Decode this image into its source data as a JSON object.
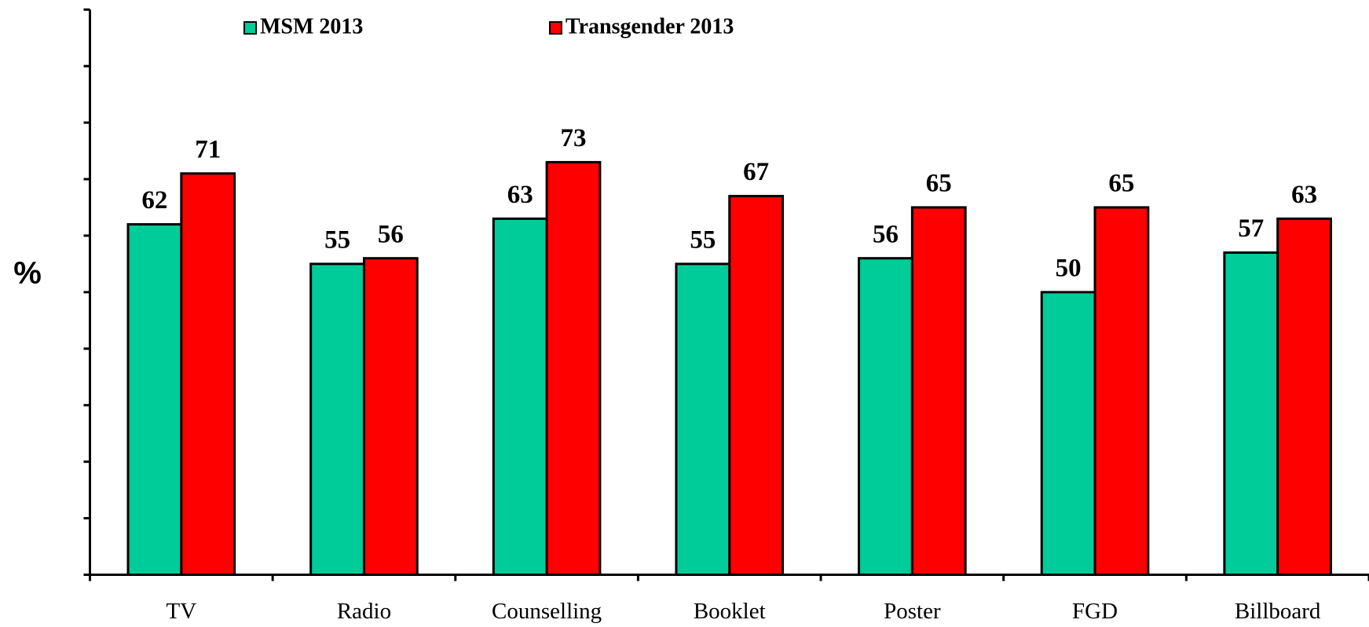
{
  "chart_data": {
    "type": "bar",
    "y_label": "%",
    "categories": [
      "TV",
      "Radio",
      "Counselling",
      "Booklet",
      "Poster",
      "FGD",
      "Billboard"
    ],
    "series": [
      {
        "name": "MSM 2013",
        "color": "#00cc99",
        "values": [
          62,
          55,
          63,
          55,
          56,
          50,
          57
        ]
      },
      {
        "name": "Transgender 2013",
        "color": "#ff0000",
        "values": [
          71,
          56,
          73,
          67,
          65,
          65,
          63
        ]
      }
    ],
    "ylim": [
      0,
      100
    ],
    "yticks": [
      0,
      10,
      20,
      30,
      40,
      50,
      60,
      70,
      80,
      90,
      100
    ],
    "grid": false,
    "legend": "top"
  }
}
